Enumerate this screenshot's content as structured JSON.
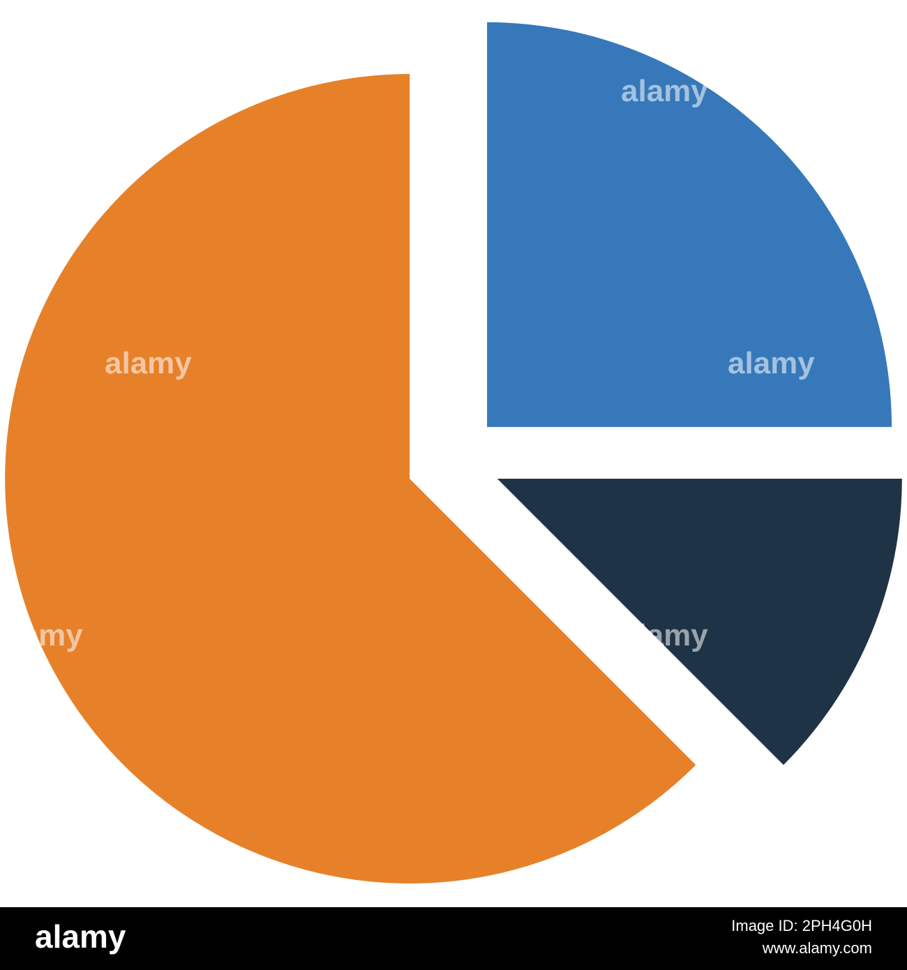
{
  "chart_data": {
    "type": "pie",
    "values": [
      25,
      12.5,
      62.5
    ],
    "colors": [
      "#3778ba",
      "#1f3347",
      "#e6812a"
    ]
  },
  "watermark": "alamy",
  "footer": {
    "brand": "alamy",
    "image_id": "Image ID: 2PH4G0H",
    "url": "www.alamy.com"
  }
}
